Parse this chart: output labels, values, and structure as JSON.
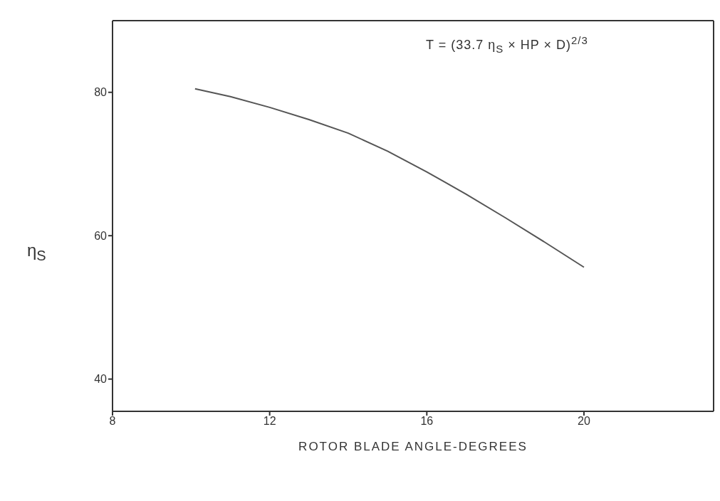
{
  "chart_data": {
    "type": "line",
    "xlabel": "ROTOR BLADE ANGLE-DEGREES",
    "ylabel": "η$_{S}$",
    "annotations": [
      "T = (33.7 η$_{S}$ × HP × D)$^{2/3}$"
    ],
    "x": [
      10.1,
      11,
      12,
      13,
      14,
      15,
      16,
      17,
      18,
      19,
      20
    ],
    "series": [
      {
        "color": "#555555",
        "values": [
          80.5,
          79.4,
          77.9,
          76.2,
          74.3,
          71.8,
          68.9,
          65.8,
          62.5,
          59.1,
          55.6
        ]
      }
    ],
    "xlim": [
      8,
      23.3
    ],
    "xticks": [
      8,
      12,
      16,
      20
    ],
    "ylim": [
      35.5,
      90
    ],
    "yticks": [
      40,
      60,
      80
    ],
    "grid": false,
    "marker": "none",
    "line_style": "solid",
    "legend": false
  }
}
